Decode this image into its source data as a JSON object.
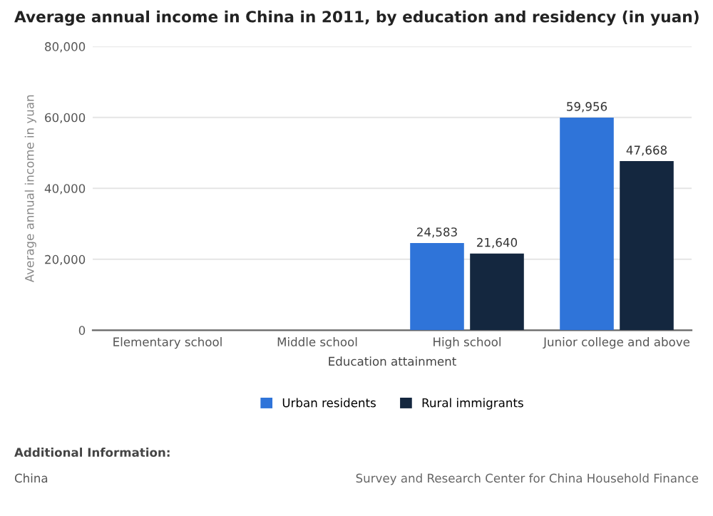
{
  "chart_data": {
    "type": "bar",
    "title": "Average annual income in China in 2011, by education and residency (in yuan)",
    "xlabel": "Education attainment",
    "ylabel": "Average annual income in yuan",
    "categories": [
      "Elementary school",
      "Middle school",
      "High school",
      "Junior college and above"
    ],
    "series": [
      {
        "name": "Urban residents",
        "color": "#2f74d9",
        "values": [
          null,
          null,
          24583,
          59956
        ],
        "value_labels": [
          null,
          null,
          "24,583",
          "59,956"
        ]
      },
      {
        "name": "Rural immigrants",
        "color": "#14273f",
        "values": [
          null,
          null,
          21640,
          47668
        ],
        "value_labels": [
          null,
          null,
          "21,640",
          "47,668"
        ]
      }
    ],
    "ylim": [
      0,
      80000
    ],
    "yticks": [
      {
        "value": 0,
        "label": "0"
      },
      {
        "value": 20000,
        "label": "20,000"
      },
      {
        "value": 40000,
        "label": "40,000"
      },
      {
        "value": 60000,
        "label": "60,000"
      },
      {
        "value": 80000,
        "label": "80,000"
      }
    ],
    "grid": "y",
    "legend": "bottom",
    "annotations": [
      "Additional Information:",
      "China",
      "Survey and Research Center for China Household Finance"
    ]
  }
}
